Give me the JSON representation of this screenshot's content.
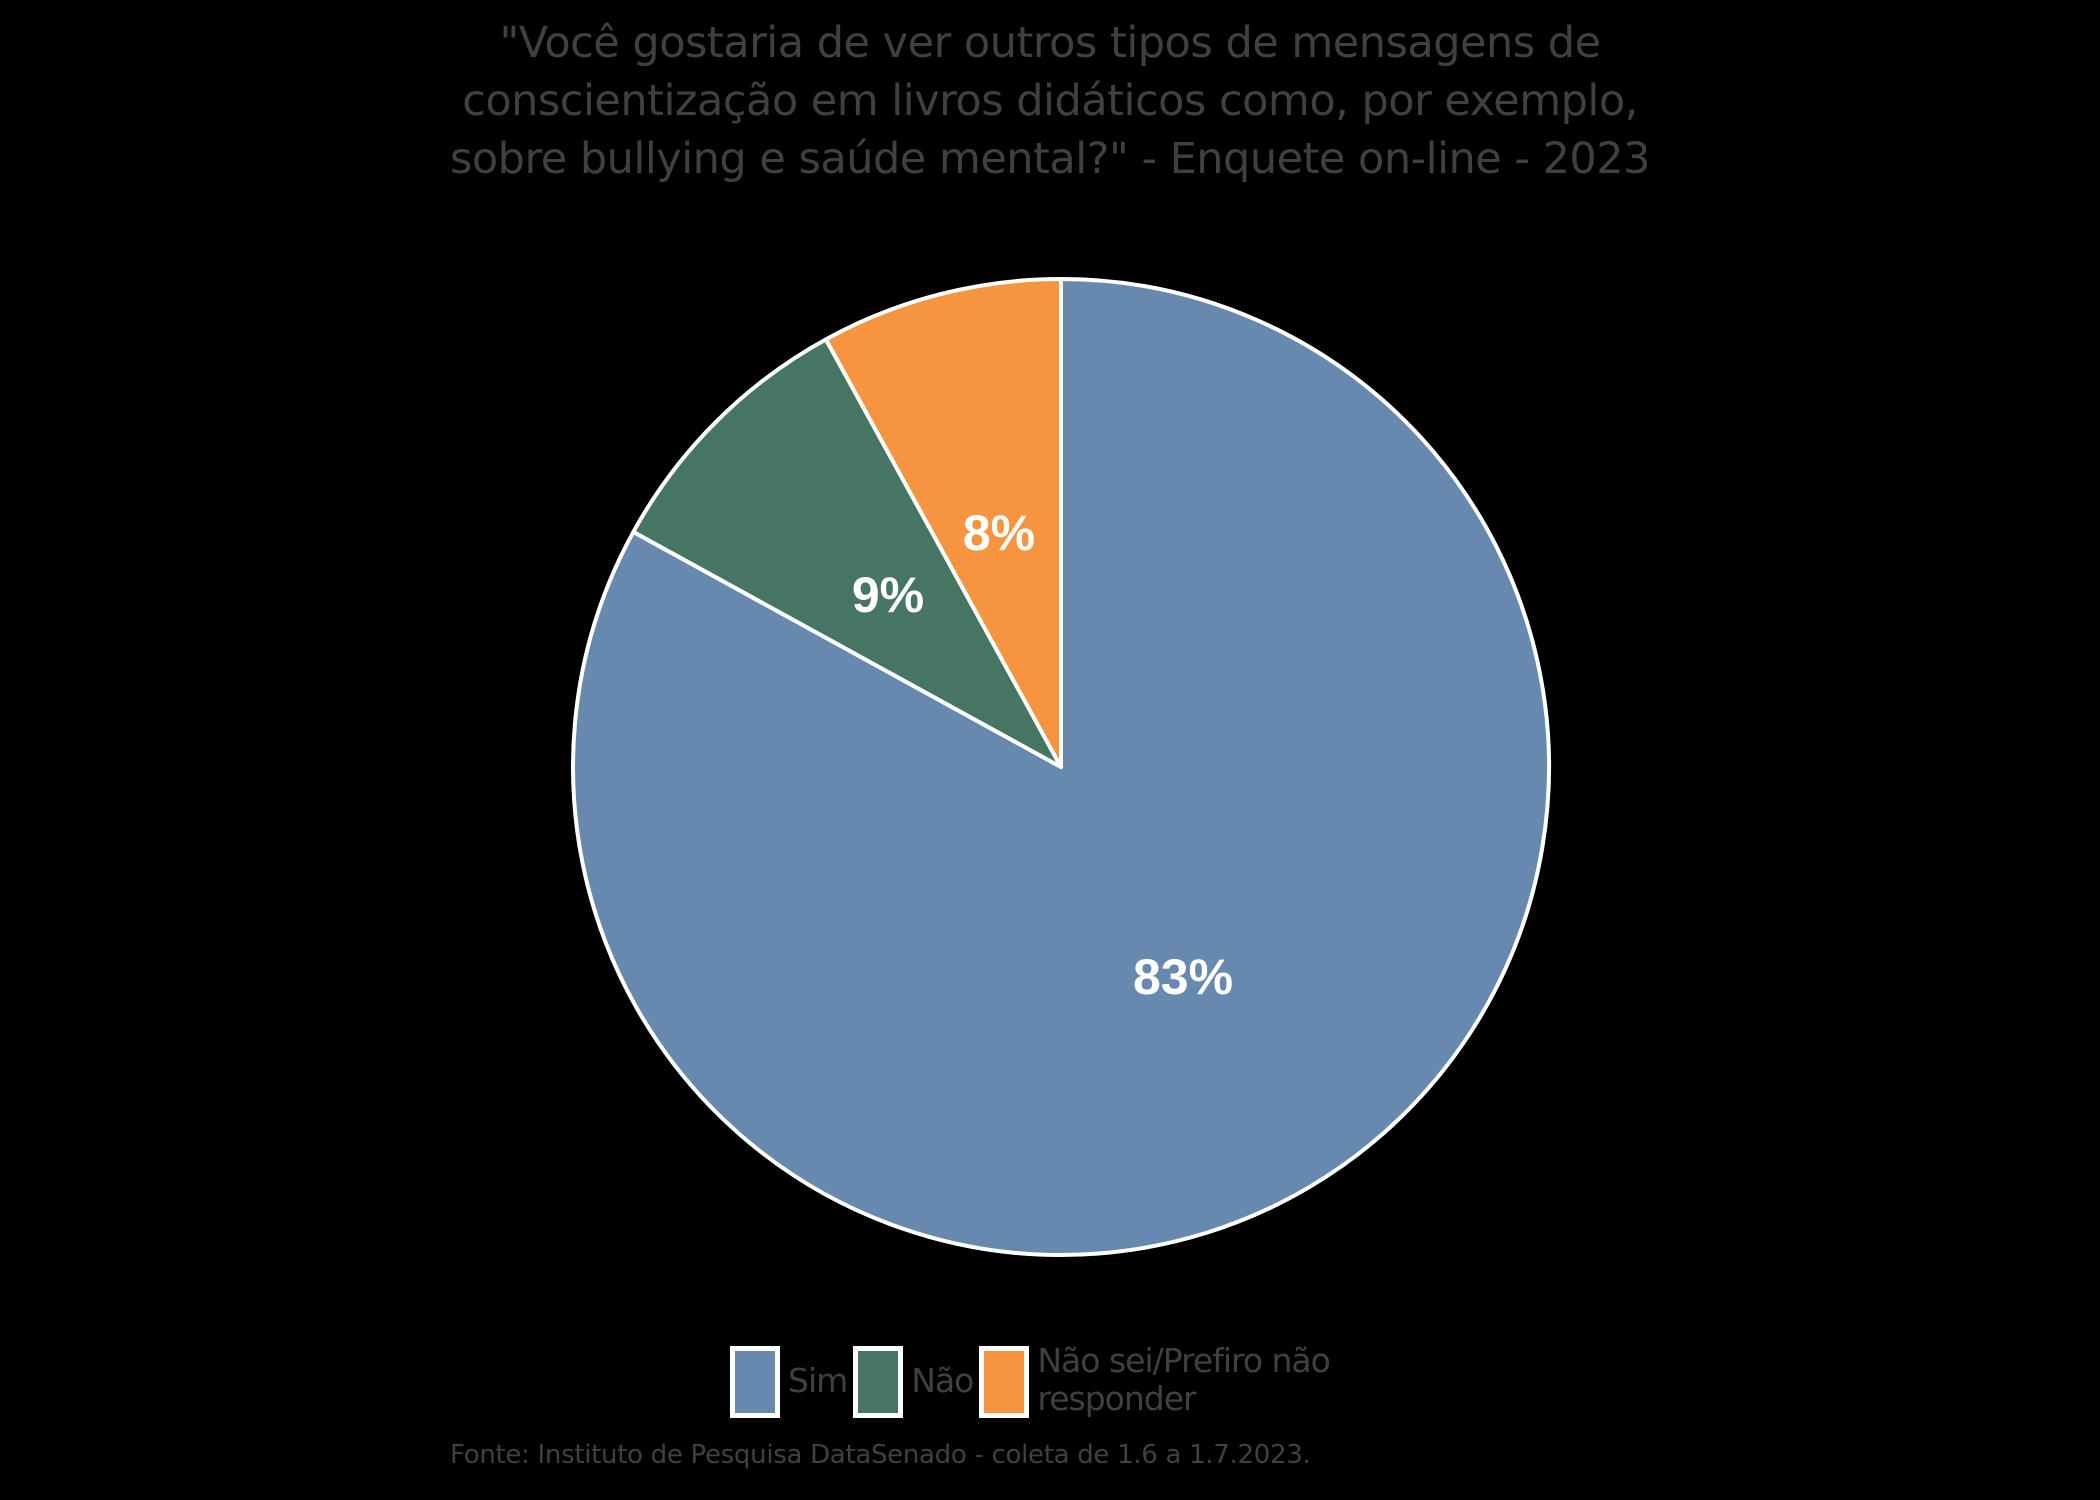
{
  "chart_data": {
    "type": "pie",
    "title": "\"Você gostaria de ver outros tipos de mensagens de conscientização em livros didáticos como, por exemplo, sobre bullying e saúde mental?\" - Enquete on-line - 2023",
    "title_lines": [
      "\"Você gostaria de ver outros tipos de mensagens de",
      "conscientização em livros didáticos como, por exemplo,",
      "sobre bullying e saúde mental?\" - Enquete on-line - 2023"
    ],
    "categories": [
      "Sim",
      "Não",
      "Não sei/Prefiro não responder"
    ],
    "values": [
      83,
      9,
      8
    ],
    "unit": "%",
    "data_labels": [
      "83%",
      "9%",
      "8%"
    ],
    "colors": [
      "#6789b0",
      "#477563",
      "#f79440"
    ],
    "start_angle": "12 o'clock, clockwise",
    "legend_position": "bottom",
    "source": "Fonte: Instituto de Pesquisa DataSenado - coleta de 1.6 a 1.7.2023."
  },
  "legend": {
    "items": [
      {
        "label": "Sim",
        "color": "#6789b0"
      },
      {
        "label": "Não",
        "color": "#477563"
      },
      {
        "label_line1": "Não sei/Prefiro não",
        "label_line2": "responder",
        "color": "#f79440"
      }
    ]
  },
  "colors": {
    "background": "#000000",
    "text": "#404040",
    "slice_border": "#ffffff",
    "data_label": "#ffffff"
  }
}
